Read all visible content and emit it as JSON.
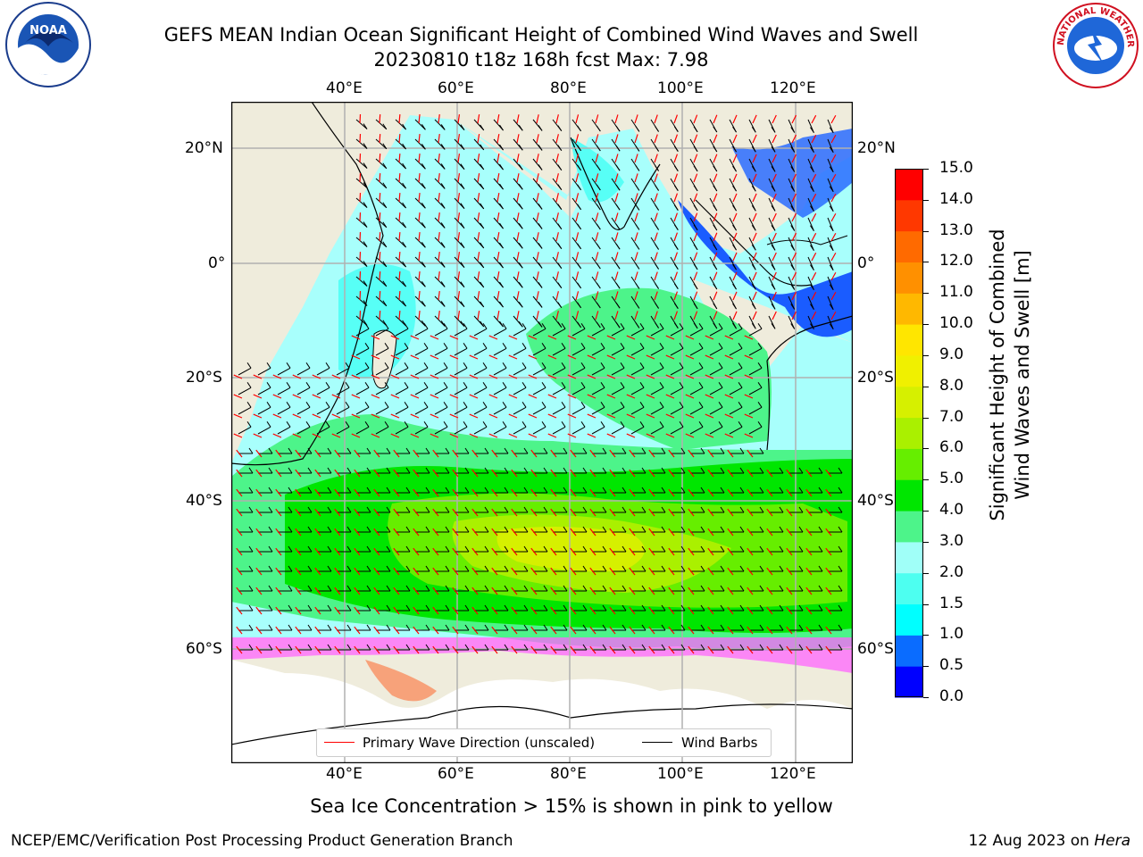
{
  "title": {
    "line1": "GEFS MEAN Indian Ocean Significant Height of Combined Wind Waves and Swell",
    "line2": "20230810 t18z 168h fcst   Max: 7.98"
  },
  "logos": {
    "left": {
      "name": "noaa-logo",
      "text": "NOAA"
    },
    "right": {
      "name": "nws-logo",
      "text": "NATIONAL WEATHER SERVICE"
    }
  },
  "map": {
    "lon_ticks_top": [
      "40°E",
      "60°E",
      "80°E",
      "100°E",
      "120°E"
    ],
    "lon_ticks_bottom": [
      "40°E",
      "60°E",
      "80°E",
      "100°E",
      "120°E"
    ],
    "lat_ticks_left": [
      "20°N",
      "0°",
      "20°S",
      "40°S",
      "60°S"
    ],
    "lat_ticks_right": [
      "20°N",
      "0°",
      "20°S",
      "40°S",
      "60°S"
    ],
    "land_color": "#efecdc",
    "grid_color": "#b0b0b0"
  },
  "legend": {
    "wave_label": "Primary Wave Direction (unscaled)",
    "wave_color": "#ff0000",
    "wind_label": "Wind Barbs",
    "wind_color": "#000000"
  },
  "colorbar": {
    "label_line1": "Significant Height of Combined",
    "label_line2": "Wind Waves and Swell [m]",
    "ticks": [
      "0.0",
      "0.5",
      "1.0",
      "1.5",
      "2.0",
      "3.0",
      "4.0",
      "5.0",
      "6.0",
      "7.0",
      "8.0",
      "9.0",
      "10.0",
      "11.0",
      "12.0",
      "13.0",
      "14.0",
      "15.0"
    ],
    "colors": [
      "#0000ff",
      "#0a6cff",
      "#00ffff",
      "#4dfff0",
      "#a0fff8",
      "#4df48a",
      "#00e600",
      "#66ee00",
      "#aaf000",
      "#d6f000",
      "#f0f000",
      "#ffe600",
      "#ffb800",
      "#ff9000",
      "#ff6a00",
      "#ff3800",
      "#ff0000"
    ]
  },
  "caption": "Sea Ice Concentration > 15% is shown in pink to yellow",
  "footer": {
    "left": "NCEP/EMC/Verification Post Processing Product Generation Branch",
    "right_prefix": "12 Aug 2023 on ",
    "right_host": "Hera"
  }
}
